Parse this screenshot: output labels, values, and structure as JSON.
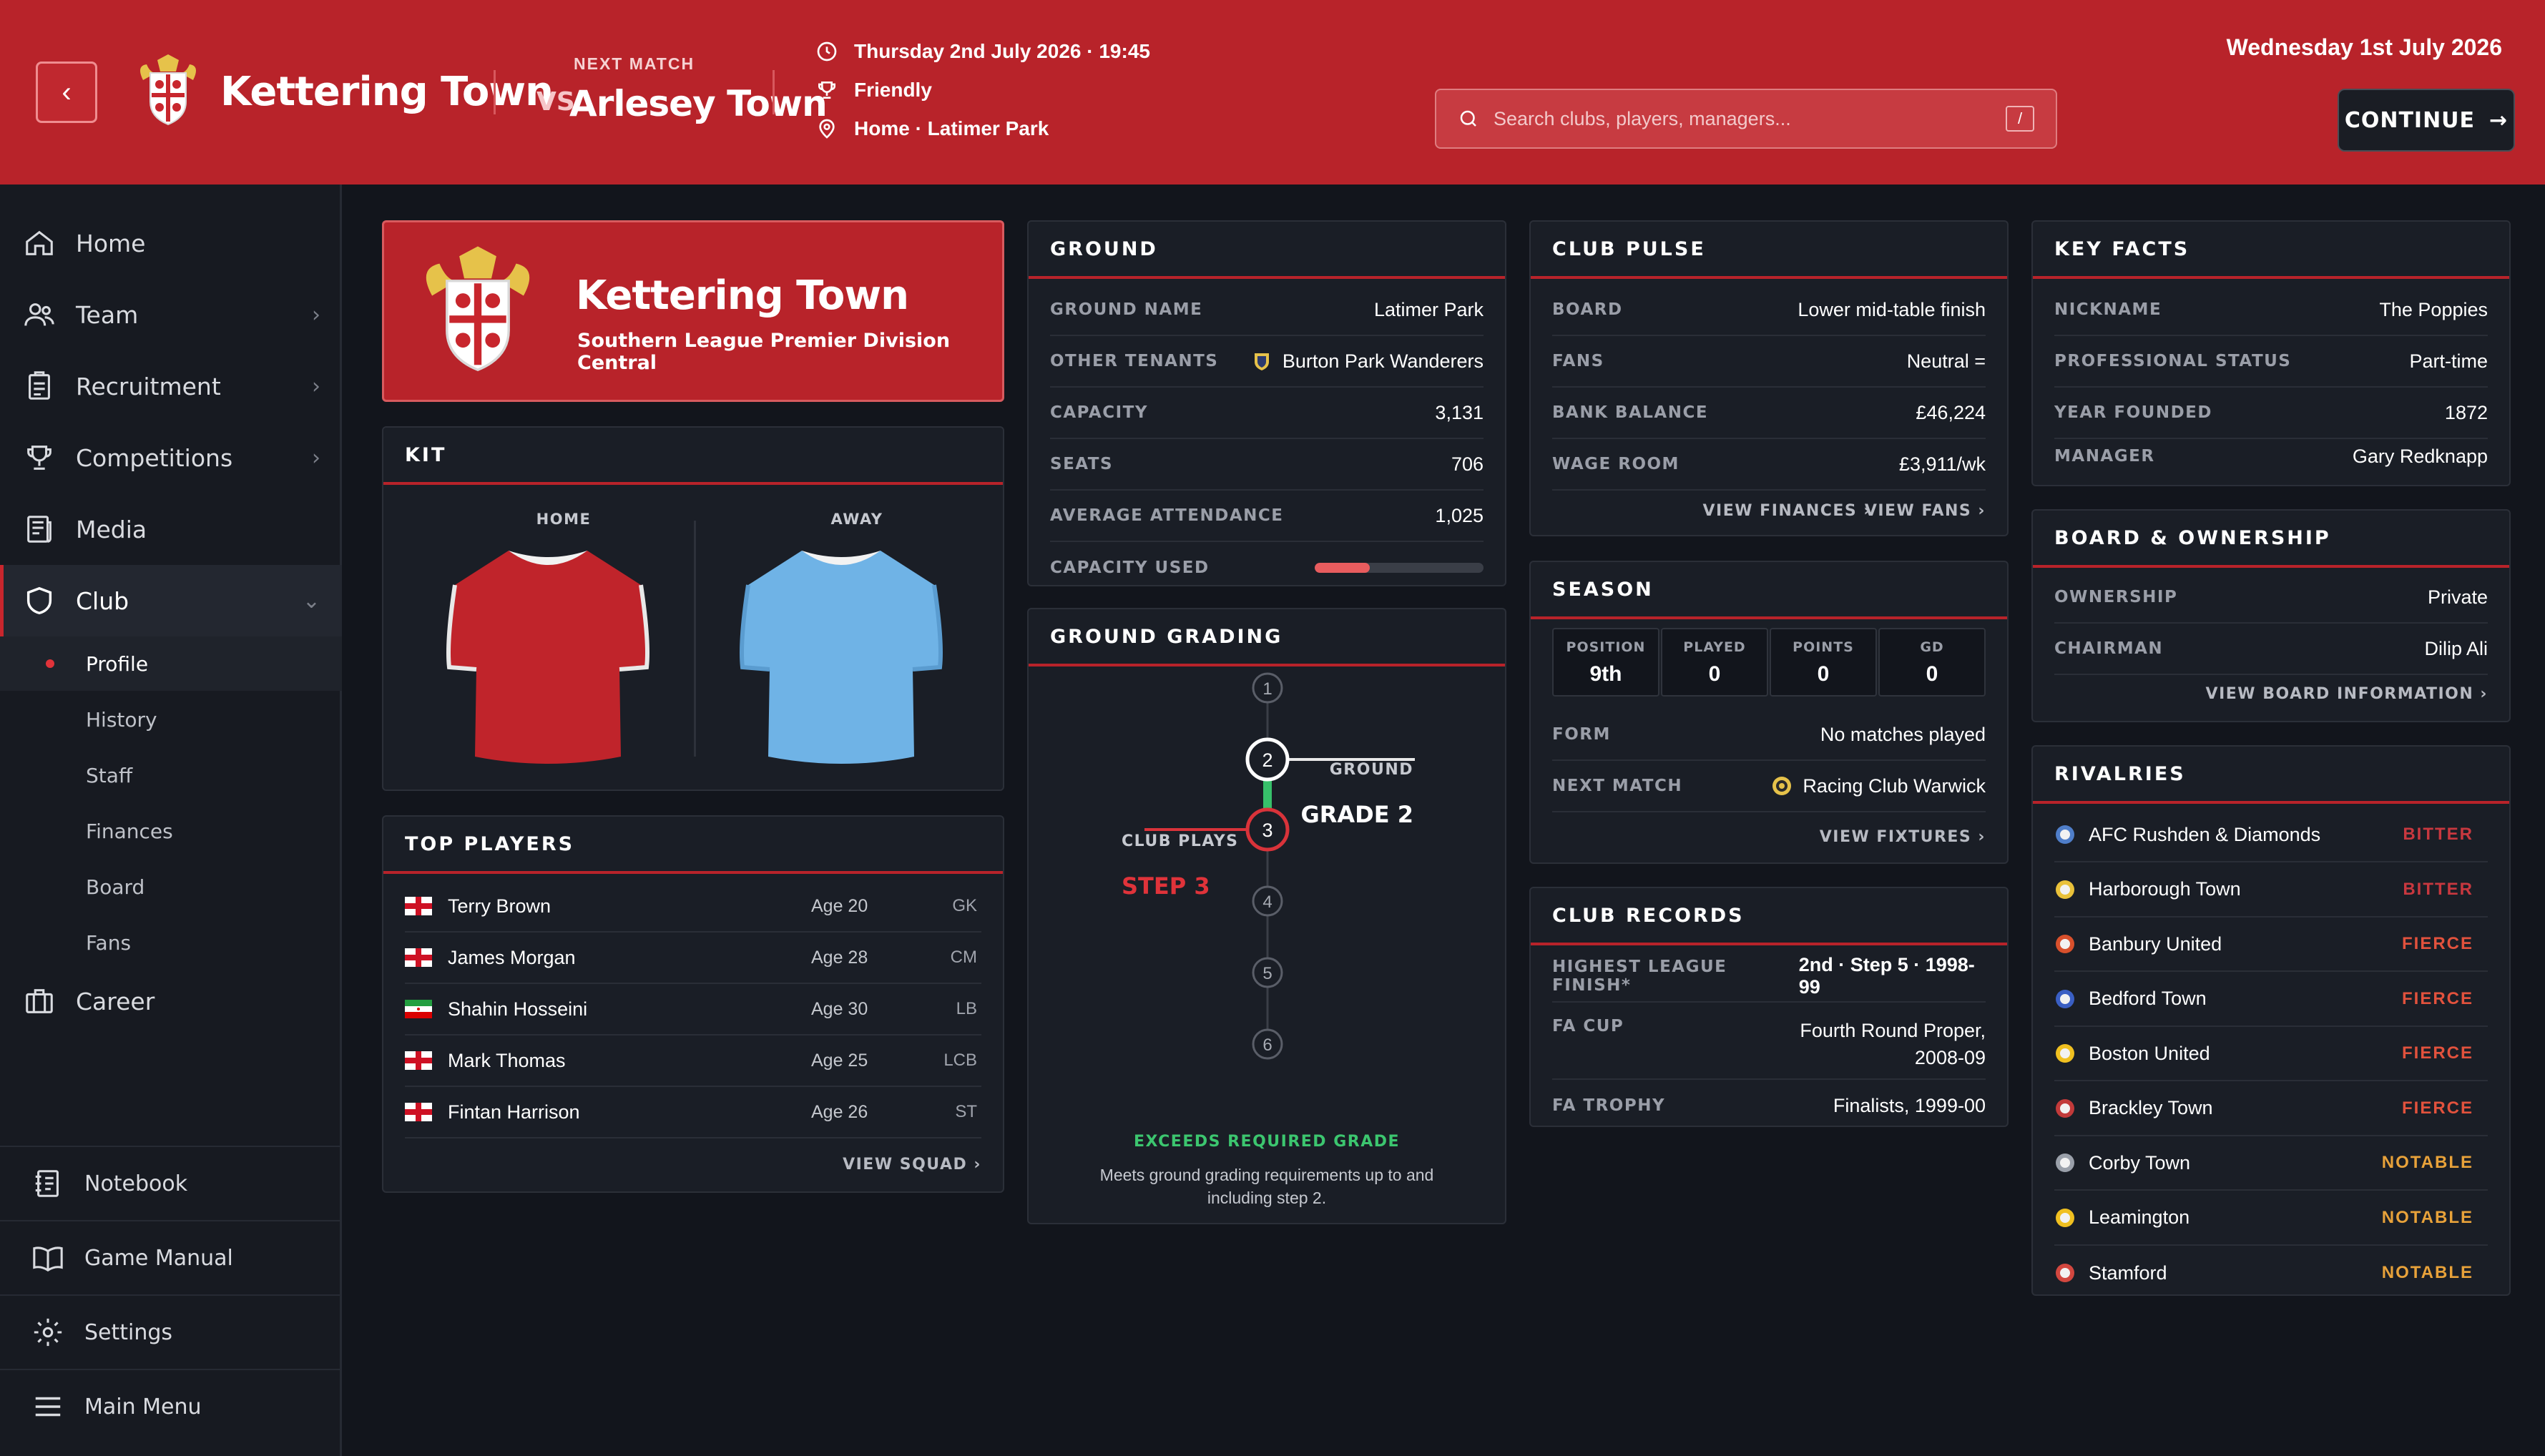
{
  "header": {
    "club_name": "Kettering Town",
    "next_match_label": "NEXT MATCH",
    "vs": "VS",
    "opponent": "Arlesey Town",
    "match_datetime": "Thursday 2nd July 2026 · 19:45",
    "competition": "Friendly",
    "venue": "Home · Latimer Park",
    "search_placeholder": "Search clubs, players, managers...",
    "search_shortcut": "/",
    "current_date": "Wednesday 1st July 2026",
    "continue_label": "CONTINUE"
  },
  "sidebar": {
    "items": [
      {
        "label": "Home",
        "icon": "home-icon"
      },
      {
        "label": "Team",
        "icon": "team-icon",
        "chevron": "›"
      },
      {
        "label": "Recruitment",
        "icon": "clipboard-icon",
        "chevron": "›"
      },
      {
        "label": "Competitions",
        "icon": "trophy-icon",
        "chevron": "›"
      },
      {
        "label": "Media",
        "icon": "newspaper-icon"
      },
      {
        "label": "Club",
        "icon": "shield-icon",
        "chevron": "⌄"
      }
    ],
    "club_sub": [
      "Profile",
      "History",
      "Staff",
      "Finances",
      "Board",
      "Fans"
    ],
    "career": "Career",
    "bottom": [
      "Notebook",
      "Game Manual",
      "Settings",
      "Main Menu"
    ]
  },
  "hero": {
    "name": "Kettering Town",
    "league": "Southern League Premier Division Central"
  },
  "kit": {
    "title": "KIT",
    "home_label": "HOME",
    "away_label": "AWAY",
    "home_color": "#c0242b",
    "away_color": "#6fb3e6"
  },
  "top_players": {
    "title": "TOP PLAYERS",
    "players": [
      {
        "name": "Terry Brown",
        "age": "Age 20",
        "pos": "GK",
        "flag": "england"
      },
      {
        "name": "James Morgan",
        "age": "Age 28",
        "pos": "CM",
        "flag": "england"
      },
      {
        "name": "Shahin Hosseini",
        "age": "Age 30",
        "pos": "LB",
        "flag": "iran"
      },
      {
        "name": "Mark Thomas",
        "age": "Age 25",
        "pos": "LCB",
        "flag": "england"
      },
      {
        "name": "Fintan Harrison",
        "age": "Age 26",
        "pos": "ST",
        "flag": "england"
      }
    ],
    "link": "VIEW SQUAD ›"
  },
  "ground": {
    "title": "GROUND",
    "rows": [
      {
        "k": "GROUND NAME",
        "v": "Latimer Park"
      },
      {
        "k": "OTHER TENANTS",
        "v": "Burton Park Wanderers"
      },
      {
        "k": "CAPACITY",
        "v": "3,131"
      },
      {
        "k": "SEATS",
        "v": "706"
      },
      {
        "k": "AVERAGE ATTENDANCE",
        "v": "1,025"
      }
    ],
    "capacity_used_label": "CAPACITY USED",
    "capacity_used_fraction": 0.327
  },
  "grading": {
    "title": "GROUND GRADING",
    "steps": [
      "1",
      "2",
      "3",
      "4",
      "5",
      "6"
    ],
    "ground_label": "GROUND",
    "ground_grade": "GRADE 2",
    "club_label": "CLUB PLAYS",
    "club_step": "STEP 3",
    "verdict": "EXCEEDS REQUIRED GRADE",
    "desc_line1": "Meets ground grading requirements up to and",
    "desc_line2": "including step 2."
  },
  "pulse": {
    "title": "CLUB PULSE",
    "rows": [
      {
        "k": "BOARD",
        "v": "Lower mid-table finish"
      },
      {
        "k": "FANS",
        "v": "Neutral ="
      },
      {
        "k": "BANK BALANCE",
        "v": "£46,224"
      },
      {
        "k": "WAGE ROOM",
        "v": "£3,911/wk"
      }
    ],
    "link1": "VIEW FINANCES ›",
    "link2": "VIEW FANS ›"
  },
  "season": {
    "title": "SEASON",
    "boxes": [
      {
        "k": "POSITION",
        "v": "9th"
      },
      {
        "k": "PLAYED",
        "v": "0"
      },
      {
        "k": "POINTS",
        "v": "0"
      },
      {
        "k": "GD",
        "v": "0"
      }
    ],
    "rows": [
      {
        "k": "FORM",
        "v": "No matches played"
      },
      {
        "k": "NEXT MATCH",
        "v": "Racing Club Warwick"
      }
    ],
    "link": "VIEW FIXTURES ›"
  },
  "records": {
    "title": "CLUB RECORDS",
    "rows": [
      {
        "k": "HIGHEST LEAGUE FINISH*",
        "v": "2nd · Step 5 · 1998-99"
      },
      {
        "k": "FA CUP",
        "v1": "Fourth Round Proper,",
        "v2": "2008-09"
      },
      {
        "k": "FA TROPHY",
        "v": "Finalists, 1999-00"
      }
    ]
  },
  "facts": {
    "title": "KEY FACTS",
    "rows": [
      {
        "k": "NICKNAME",
        "v": "The Poppies"
      },
      {
        "k": "PROFESSIONAL STATUS",
        "v": "Part-time"
      },
      {
        "k": "YEAR FOUNDED",
        "v": "1872"
      },
      {
        "k": "MANAGER",
        "v": "Gary Redknapp"
      }
    ]
  },
  "board": {
    "title": "BOARD & OWNERSHIP",
    "rows": [
      {
        "k": "OWNERSHIP",
        "v": "Private"
      },
      {
        "k": "CHAIRMAN",
        "v": "Dilip Ali"
      }
    ],
    "link": "VIEW BOARD INFORMATION ›"
  },
  "rivalries": {
    "title": "RIVALRIES",
    "items": [
      {
        "club": "AFC Rushden & Diamonds",
        "level": "BITTER",
        "cls": "bitter",
        "badge": "#4f7ec9"
      },
      {
        "club": "Harborough Town",
        "level": "BITTER",
        "cls": "bitter",
        "badge": "#e9c13a"
      },
      {
        "club": "Banbury United",
        "level": "FIERCE",
        "cls": "fierce",
        "badge": "#d8502c"
      },
      {
        "club": "Bedford Town",
        "level": "FIERCE",
        "cls": "fierce",
        "badge": "#3a5fc4"
      },
      {
        "club": "Boston United",
        "level": "FIERCE",
        "cls": "fierce",
        "badge": "#f0c020"
      },
      {
        "club": "Brackley Town",
        "level": "FIERCE",
        "cls": "fierce",
        "badge": "#c23a3a"
      },
      {
        "club": "Corby Town",
        "level": "NOTABLE",
        "cls": "notable",
        "badge": "#9aa0aa"
      },
      {
        "club": "Leamington",
        "level": "NOTABLE",
        "cls": "notable",
        "badge": "#f0c020"
      },
      {
        "club": "Stamford",
        "level": "NOTABLE",
        "cls": "notable",
        "badge": "#d2473f"
      }
    ]
  }
}
